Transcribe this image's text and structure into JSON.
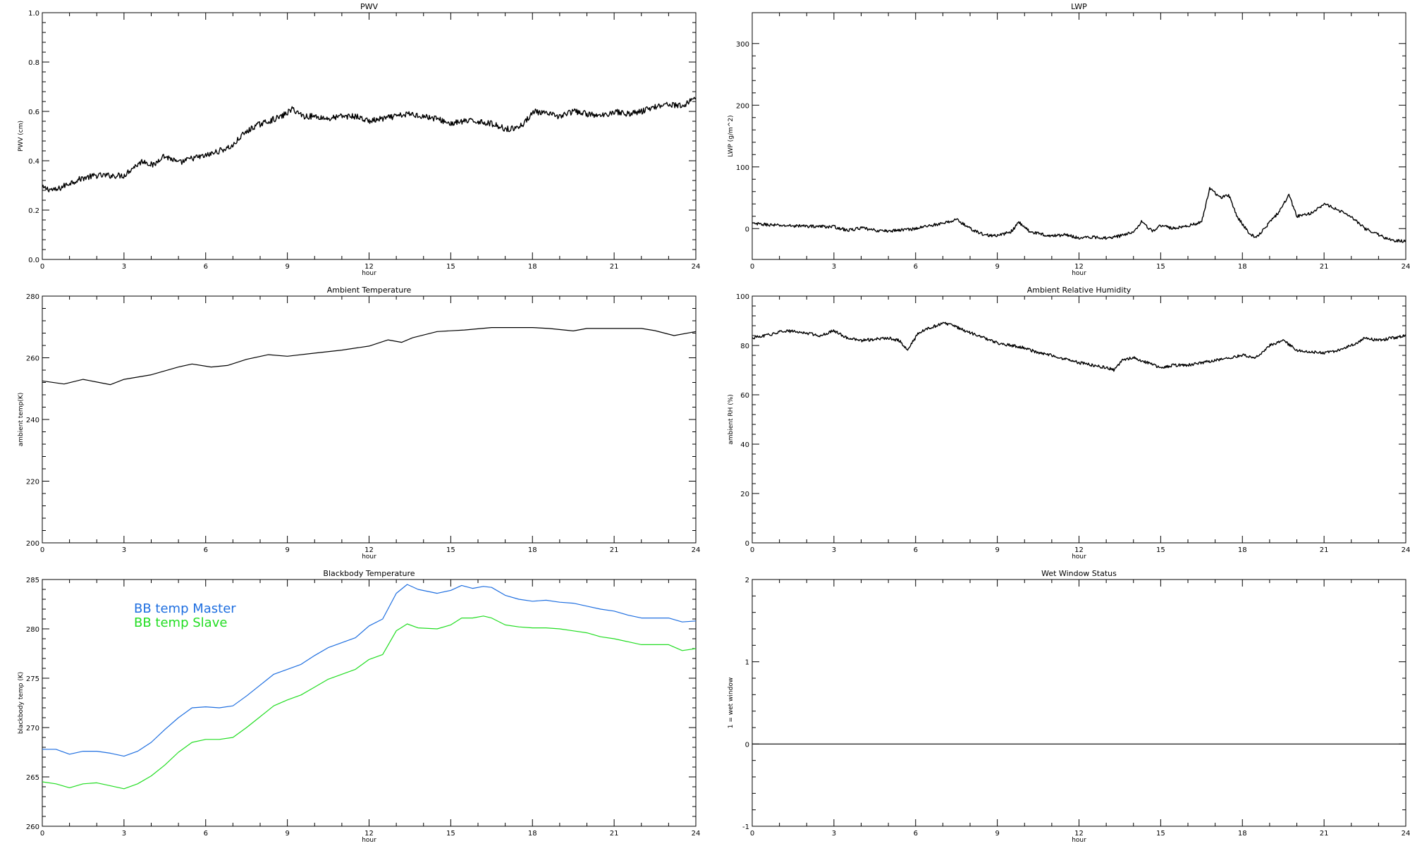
{
  "chart_data": [
    {
      "id": "pwv",
      "type": "line",
      "title": "PWV",
      "xlabel": "hour",
      "ylabel": "PWV (cm)",
      "xlim": [
        0,
        24
      ],
      "ylim": [
        0,
        1.0
      ],
      "xticks": [
        0,
        3,
        6,
        9,
        12,
        15,
        18,
        21,
        24
      ],
      "yticks": [
        0.0,
        0.2,
        0.4,
        0.6,
        0.8,
        1.0
      ],
      "ytick_labels": [
        "0.0",
        "0.2",
        "0.4",
        "0.6",
        "0.8",
        "1.0"
      ],
      "noise": 0.012,
      "series": [
        {
          "color": "#000000",
          "x": [
            0,
            0.5,
            1,
            1.5,
            2,
            2.5,
            3,
            3.3,
            3.7,
            4.1,
            4.4,
            4.7,
            5,
            5.5,
            6,
            6.5,
            7,
            7.3,
            7.8,
            8.3,
            8.8,
            9.2,
            9.6,
            10,
            10.5,
            11,
            11.5,
            12,
            12.5,
            13,
            13.5,
            14,
            14.5,
            15,
            15.5,
            16,
            16.5,
            17,
            17.3,
            17.7,
            18,
            18.5,
            19,
            19.5,
            20,
            20.5,
            21,
            21.5,
            22,
            22.5,
            23,
            23.5,
            24
          ],
          "values": [
            0.29,
            0.28,
            0.31,
            0.33,
            0.34,
            0.34,
            0.34,
            0.37,
            0.4,
            0.38,
            0.42,
            0.41,
            0.39,
            0.41,
            0.42,
            0.44,
            0.46,
            0.5,
            0.54,
            0.56,
            0.58,
            0.61,
            0.58,
            0.58,
            0.57,
            0.58,
            0.58,
            0.56,
            0.57,
            0.58,
            0.59,
            0.58,
            0.57,
            0.55,
            0.56,
            0.56,
            0.55,
            0.53,
            0.53,
            0.55,
            0.6,
            0.59,
            0.58,
            0.6,
            0.59,
            0.58,
            0.6,
            0.59,
            0.6,
            0.62,
            0.63,
            0.62,
            0.66
          ]
        }
      ]
    },
    {
      "id": "lwp",
      "type": "line",
      "title": "LWP",
      "xlabel": "hour",
      "ylabel": "LWP (g/m^2)",
      "xlim": [
        0,
        24
      ],
      "ylim": [
        -50,
        350
      ],
      "xticks": [
        0,
        3,
        6,
        9,
        12,
        15,
        18,
        21,
        24
      ],
      "yticks": [
        0,
        100,
        200,
        300
      ],
      "ytick_labels": [
        "0",
        "100",
        "200",
        "300"
      ],
      "noise": 2.5,
      "series": [
        {
          "color": "#000000",
          "x": [
            0,
            1,
            2,
            3,
            3.5,
            4,
            4.5,
            5,
            5.5,
            6,
            6.5,
            7,
            7.5,
            8,
            8.5,
            9,
            9.5,
            9.8,
            10.2,
            10.5,
            11,
            11.5,
            12,
            12.5,
            13,
            13.5,
            14,
            14.3,
            14.7,
            15,
            15.5,
            16,
            16.5,
            16.8,
            17.2,
            17.5,
            17.8,
            18.2,
            18.5,
            19,
            19.4,
            19.7,
            20,
            20.5,
            21,
            21.5,
            22,
            22.5,
            23,
            23.5,
            24
          ],
          "values": [
            8,
            5,
            4,
            3,
            -3,
            1,
            -3,
            -4,
            -2,
            0,
            5,
            8,
            15,
            0,
            -10,
            -12,
            -5,
            10,
            -5,
            -8,
            -12,
            -10,
            -15,
            -14,
            -15,
            -12,
            -5,
            12,
            -5,
            5,
            0,
            5,
            10,
            65,
            50,
            55,
            20,
            -5,
            -15,
            10,
            30,
            55,
            20,
            25,
            40,
            30,
            20,
            0,
            -10,
            -20,
            -20
          ]
        }
      ]
    },
    {
      "id": "ambient-temp",
      "type": "line",
      "title": "Ambient Temperature",
      "xlabel": "hour",
      "ylabel": "ambient temp(K)",
      "xlim": [
        0,
        24
      ],
      "ylim": [
        200,
        280
      ],
      "xticks": [
        0,
        3,
        6,
        9,
        12,
        15,
        18,
        21,
        24
      ],
      "yticks": [
        200,
        220,
        240,
        260,
        280
      ],
      "ytick_labels": [
        "200",
        "220",
        "240",
        "260",
        "280"
      ],
      "noise": 0,
      "series": [
        {
          "color": "#000000",
          "x": [
            0,
            0.8,
            1.5,
            2.5,
            3,
            4,
            5,
            5.5,
            6.2,
            6.8,
            7.5,
            8.3,
            9,
            10,
            11,
            12,
            12.7,
            13.2,
            13.6,
            14.5,
            15.5,
            16.5,
            18,
            18.6,
            19.5,
            20,
            21,
            22,
            22.5,
            23.2,
            24
          ],
          "values": [
            252.5,
            251.5,
            253,
            251.3,
            253,
            254.5,
            257,
            258,
            257,
            257.5,
            259.5,
            261,
            260.5,
            261.5,
            262.5,
            263.8,
            265.8,
            265,
            266.5,
            268.5,
            269,
            269.8,
            269.8,
            269.5,
            268.7,
            269.5,
            269.5,
            269.5,
            268.8,
            267.2,
            268.5
          ]
        }
      ]
    },
    {
      "id": "ambient-rh",
      "type": "line",
      "title": "Ambient Relative Humidity",
      "xlabel": "hour",
      "ylabel": "ambient RH (%)",
      "xlim": [
        0,
        24
      ],
      "ylim": [
        0,
        100
      ],
      "xticks": [
        0,
        3,
        6,
        9,
        12,
        15,
        18,
        21,
        24
      ],
      "yticks": [
        0,
        20,
        40,
        60,
        80,
        100
      ],
      "ytick_labels": [
        "0",
        "20",
        "40",
        "60",
        "80",
        "100"
      ],
      "noise": 0.6,
      "series": [
        {
          "color": "#000000",
          "x": [
            0,
            0.5,
            1.2,
            2,
            2.5,
            3,
            3.5,
            4,
            5,
            5.4,
            5.7,
            6.1,
            6.5,
            7,
            7.4,
            7.8,
            8.3,
            9,
            9.5,
            10,
            10.5,
            11,
            12,
            12.5,
            13,
            13.3,
            13.6,
            14,
            14.5,
            15,
            15.5,
            16,
            17,
            17.5,
            18,
            18.5,
            19,
            19.5,
            20,
            21,
            21.5,
            22,
            22.5,
            23,
            24
          ],
          "values": [
            83,
            84,
            86,
            85,
            84,
            86,
            83,
            82,
            83,
            82,
            78,
            85,
            87,
            89,
            88,
            86,
            84,
            81,
            80,
            79,
            77,
            76,
            73,
            72,
            71,
            70,
            74,
            75,
            73,
            71,
            72,
            72,
            74,
            75,
            76,
            75,
            80,
            82,
            78,
            77,
            78,
            80,
            83,
            82,
            84
          ]
        }
      ]
    },
    {
      "id": "bb-temp",
      "type": "line",
      "title": "Blackbody Temperature",
      "xlabel": "hour",
      "ylabel": "blackbody temp (K)",
      "xlim": [
        0,
        24
      ],
      "ylim": [
        260,
        285
      ],
      "xticks": [
        0,
        3,
        6,
        9,
        12,
        15,
        18,
        21,
        24
      ],
      "yticks": [
        260,
        265,
        270,
        275,
        280,
        285
      ],
      "ytick_labels": [
        "260",
        "265",
        "270",
        "275",
        "280",
        "285"
      ],
      "noise": 0,
      "legend": [
        "BB temp Master",
        "BB temp Slave"
      ],
      "series": [
        {
          "name": "BB temp Master",
          "color": "#1f6fe0",
          "x": [
            0,
            0.5,
            1,
            1.5,
            2,
            2.5,
            3,
            3.5,
            4,
            4.5,
            5,
            5.5,
            6,
            6.5,
            7,
            7.5,
            8,
            8.5,
            9,
            9.5,
            10,
            10.5,
            11,
            11.5,
            12,
            12.5,
            13,
            13.4,
            13.8,
            14.5,
            15,
            15.4,
            15.8,
            16.2,
            16.5,
            17,
            17.5,
            18,
            18.5,
            19,
            19.5,
            20,
            20.5,
            21,
            21.5,
            22,
            22.5,
            23,
            23.5,
            24
          ],
          "values": [
            267.8,
            267.8,
            267.3,
            267.6,
            267.6,
            267.4,
            267.1,
            267.6,
            268.5,
            269.8,
            271,
            272,
            272.1,
            272,
            272.2,
            273.2,
            274.3,
            275.4,
            275.9,
            276.4,
            277.3,
            278.1,
            278.6,
            279.1,
            280.3,
            281,
            283.6,
            284.5,
            284,
            283.6,
            283.9,
            284.4,
            284.1,
            284.3,
            284.2,
            283.4,
            283,
            282.8,
            282.9,
            282.7,
            282.6,
            282.3,
            282,
            281.8,
            281.4,
            281.1,
            281.1,
            281.1,
            280.7,
            280.8
          ]
        },
        {
          "name": "BB temp Slave",
          "color": "#22dd22",
          "x": [
            0,
            0.5,
            1,
            1.5,
            2,
            2.5,
            3,
            3.5,
            4,
            4.5,
            5,
            5.5,
            6,
            6.5,
            7,
            7.5,
            8,
            8.5,
            9,
            9.5,
            10,
            10.5,
            11,
            11.5,
            12,
            12.5,
            13,
            13.4,
            13.8,
            14.5,
            15,
            15.4,
            15.8,
            16.2,
            16.5,
            17,
            17.5,
            18,
            18.5,
            19,
            19.5,
            20,
            20.5,
            21,
            21.5,
            22,
            22.5,
            23,
            23.5,
            24
          ],
          "values": [
            264.5,
            264.3,
            263.9,
            264.3,
            264.4,
            264.1,
            263.8,
            264.3,
            265.1,
            266.2,
            267.5,
            268.5,
            268.8,
            268.8,
            269,
            270,
            271.1,
            272.2,
            272.8,
            273.3,
            274.1,
            274.9,
            275.4,
            275.9,
            276.9,
            277.4,
            279.8,
            280.5,
            280.1,
            280,
            280.4,
            281.1,
            281.1,
            281.3,
            281.1,
            280.4,
            280.2,
            280.1,
            280.1,
            280,
            279.8,
            279.6,
            279.2,
            279,
            278.7,
            278.4,
            278.4,
            278.4,
            277.8,
            278
          ]
        }
      ]
    },
    {
      "id": "wet-window",
      "type": "line",
      "title": "Wet Window Status",
      "xlabel": "hour",
      "ylabel": "1 = wet window",
      "xlim": [
        0,
        24
      ],
      "ylim": [
        -1,
        2
      ],
      "xticks": [
        0,
        3,
        6,
        9,
        12,
        15,
        18,
        21,
        24
      ],
      "yticks": [
        -1,
        0,
        1,
        2
      ],
      "ytick_labels": [
        "-1",
        "0",
        "1",
        "2"
      ],
      "noise": 0,
      "series": [
        {
          "color": "#000000",
          "x": [
            0,
            24
          ],
          "values": [
            0,
            0
          ]
        }
      ]
    }
  ]
}
